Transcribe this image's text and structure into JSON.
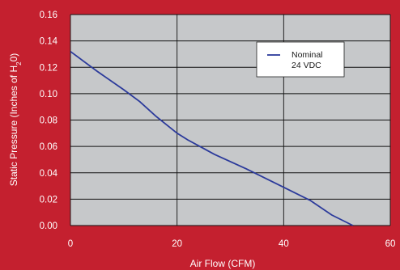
{
  "chart_data": {
    "type": "line",
    "xlabel": "Air Flow (CFM)",
    "ylabel_parts": [
      "Static Pressure (Inches of H",
      "2",
      "0)"
    ],
    "xlim": [
      0,
      60
    ],
    "ylim": [
      0,
      0.16
    ],
    "x_ticks": [
      0,
      20,
      40,
      60
    ],
    "x_tick_labels": [
      "0",
      "20",
      "40",
      "60"
    ],
    "y_ticks": [
      0,
      0.02,
      0.04,
      0.06,
      0.08,
      0.1,
      0.12,
      0.14,
      0.16
    ],
    "y_tick_labels": [
      "0.00",
      "0.02",
      "0.04",
      "0.06",
      "0.08",
      "0.10",
      "0.12",
      "0.14",
      "0.16"
    ],
    "grid": true,
    "legend_position": "top-right",
    "series": [
      {
        "name_lines": [
          "Nominal",
          "24 VDC"
        ],
        "color": "#2b3a9b",
        "x": [
          0,
          5,
          10,
          13,
          16,
          20,
          22,
          27,
          33,
          39,
          45,
          49,
          53
        ],
        "y": [
          0.132,
          0.117,
          0.103,
          0.094,
          0.083,
          0.07,
          0.065,
          0.054,
          0.043,
          0.031,
          0.019,
          0.008,
          0.0
        ]
      }
    ]
  },
  "colors": {
    "background": "#c4202f",
    "plot_area": "#c6c8ca",
    "grid": "#111111",
    "text": "#ffffff"
  }
}
